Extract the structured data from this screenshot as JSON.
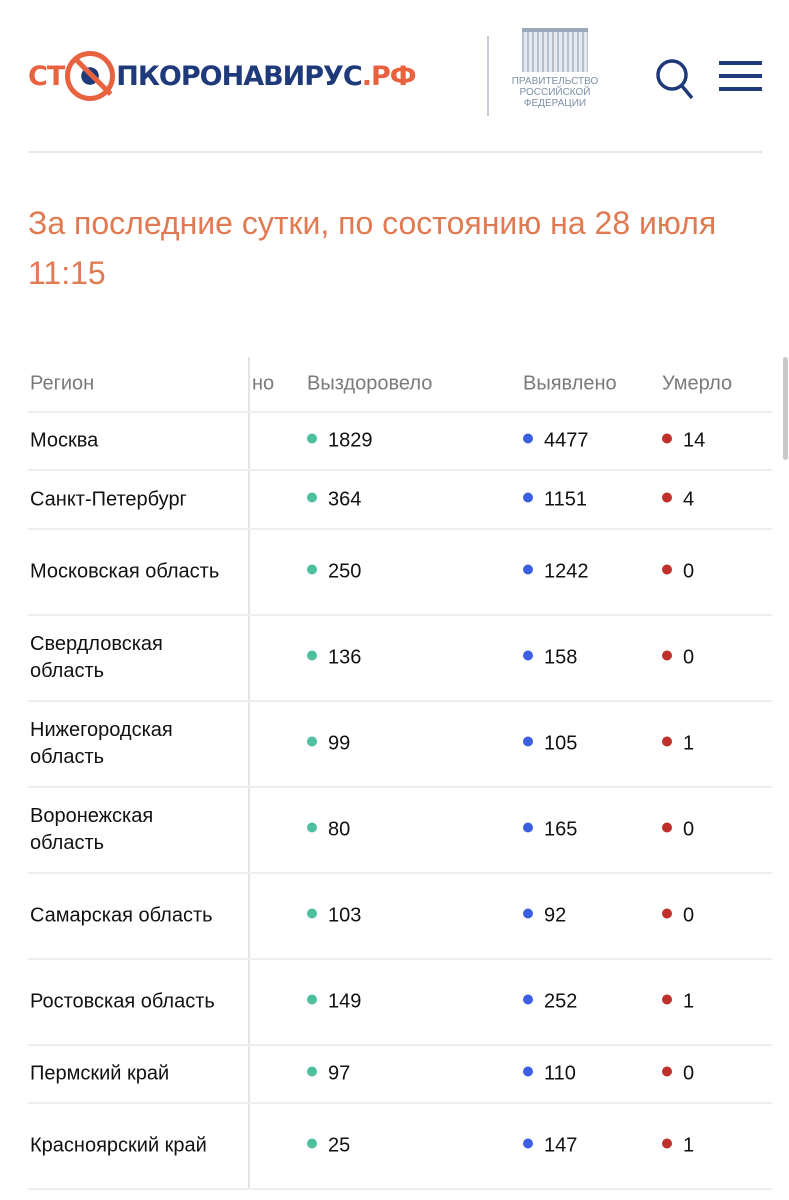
{
  "header": {
    "logo_prefix": "СТ",
    "logo_main": "ПКОРОНАВИРУС",
    "logo_suffix": ".РФ",
    "gov_line1": "ПРАВИТЕЛЬСТВО",
    "gov_line2": "РОССИЙСКОЙ",
    "gov_line3": "ФЕДЕРАЦИИ"
  },
  "title": {
    "line1": "За последние сутки, по состоянию на 28 июля",
    "line2": "11:15"
  },
  "colors": {
    "recovered": "#4dbf9f",
    "detected": "#3b5fe0",
    "died": "#c0302a",
    "accent": "#e07a52",
    "brand": "#1f3a7a"
  },
  "table": {
    "headers": {
      "region": "Регион",
      "hidden": "но",
      "recovered": "Выздоровело",
      "detected": "Выявлено",
      "died": "Умерло"
    },
    "rows": [
      {
        "region": "Москва",
        "recovered": "1829",
        "detected": "4477",
        "died": "14"
      },
      {
        "region": "Санкт-Петербург",
        "recovered": "364",
        "detected": "1151",
        "died": "4"
      },
      {
        "region": "Московская область",
        "recovered": "250",
        "detected": "1242",
        "died": "0"
      },
      {
        "region": "Свердловская область",
        "recovered": "136",
        "detected": "158",
        "died": "0"
      },
      {
        "region": "Нижегородская область",
        "recovered": "99",
        "detected": "105",
        "died": "1"
      },
      {
        "region": "Воронежская область",
        "recovered": "80",
        "detected": "165",
        "died": "0"
      },
      {
        "region": "Самарская область",
        "recovered": "103",
        "detected": "92",
        "died": "0"
      },
      {
        "region": "Ростовская область",
        "recovered": "149",
        "detected": "252",
        "died": "1"
      },
      {
        "region": "Пермский край",
        "recovered": "97",
        "detected": "110",
        "died": "0"
      },
      {
        "region": "Красноярский край",
        "recovered": "25",
        "detected": "147",
        "died": "1"
      }
    ]
  }
}
